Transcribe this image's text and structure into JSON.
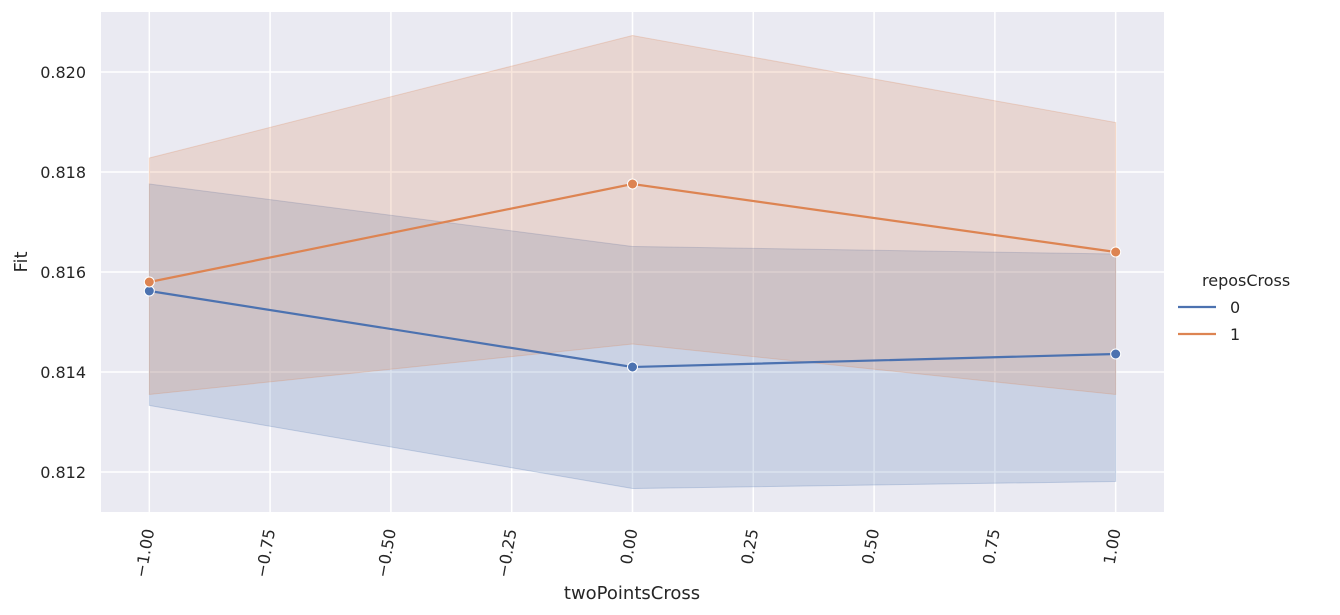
{
  "chart_data": {
    "type": "line",
    "xlabel": "twoPointsCross",
    "ylabel": "Fit",
    "x": [
      -1.0,
      0.0,
      1.0
    ],
    "xlim": [
      -1.1,
      1.1
    ],
    "ylim": [
      0.8112,
      0.8212
    ],
    "xticks": [
      -1.0,
      -0.75,
      -0.5,
      -0.25,
      0.0,
      0.25,
      0.5,
      0.75,
      1.0
    ],
    "xtick_labels": [
      "−1.00",
      "−0.75",
      "−0.50",
      "−0.25",
      "0.00",
      "0.25",
      "0.50",
      "0.75",
      "1.00"
    ],
    "yticks": [
      0.812,
      0.814,
      0.816,
      0.818,
      0.82
    ],
    "ytick_labels": [
      "0.812",
      "0.814",
      "0.816",
      "0.818",
      "0.820"
    ],
    "grid": true,
    "legend": {
      "title": "reposCross",
      "placement": "right"
    },
    "series": [
      {
        "name": "0",
        "color": "#4c72b0",
        "values": [
          0.81562,
          0.8141,
          0.81436
        ],
        "ci_lower": [
          0.81333,
          0.81167,
          0.81181
        ],
        "ci_upper": [
          0.81776,
          0.81651,
          0.81636
        ]
      },
      {
        "name": "1",
        "color": "#dd8452",
        "values": [
          0.8158,
          0.81776,
          0.8164
        ],
        "ci_lower": [
          0.81355,
          0.81456,
          0.81355
        ],
        "ci_upper": [
          0.81828,
          0.82073,
          0.81899
        ]
      }
    ]
  }
}
